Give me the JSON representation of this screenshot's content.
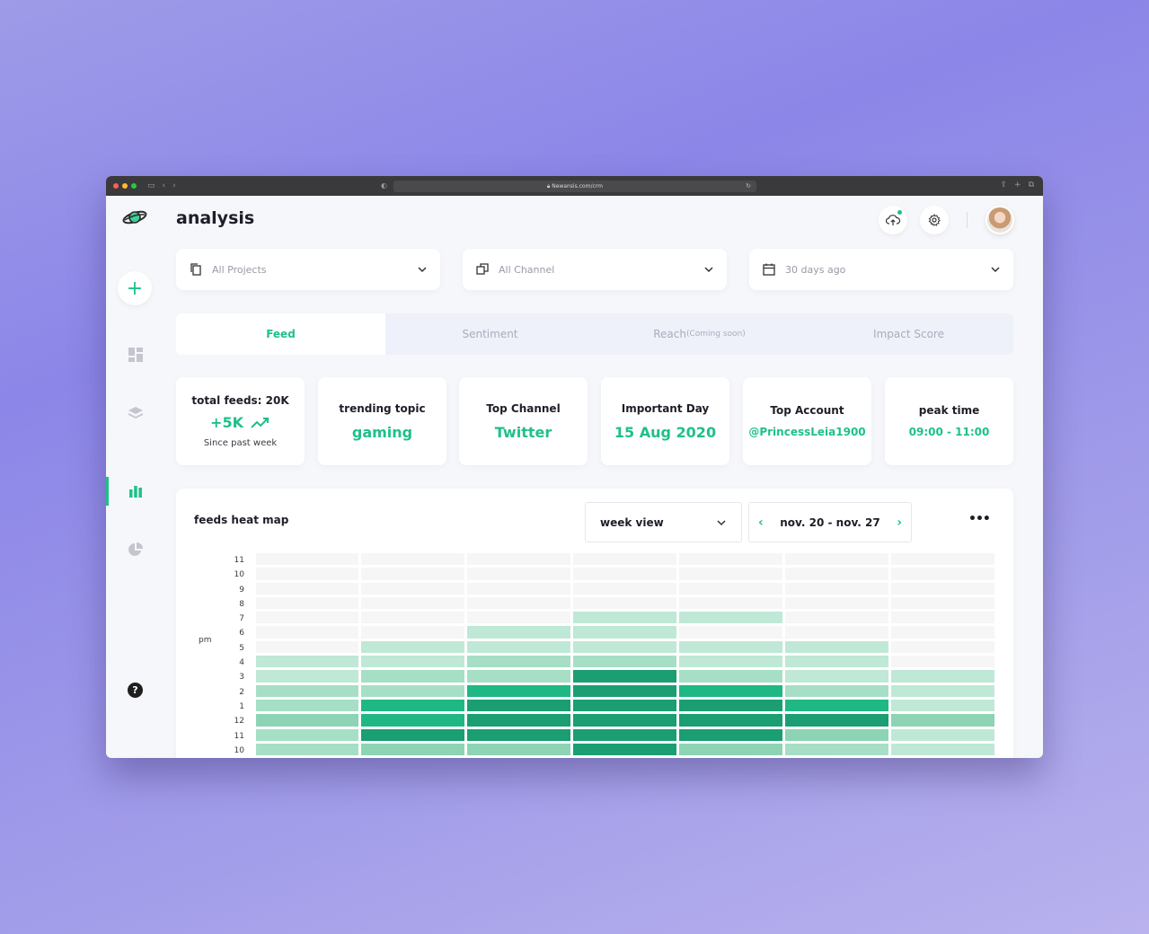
{
  "browser": {
    "url": "Newansis.com/crm"
  },
  "header": {
    "title": "analysis"
  },
  "filters": [
    {
      "label": "All Projects",
      "icon": "copy-icon"
    },
    {
      "label": "All Channel",
      "icon": "channels-icon"
    },
    {
      "label": "30 days ago",
      "icon": "calendar-icon"
    }
  ],
  "tabs": [
    {
      "label": "Feed",
      "suffix": "",
      "active": true
    },
    {
      "label": "Sentiment",
      "suffix": "",
      "active": false
    },
    {
      "label": "Reach",
      "suffix": "(Coming soon)",
      "active": false
    },
    {
      "label": "Impact Score",
      "suffix": "",
      "active": false
    }
  ],
  "stats": {
    "total": {
      "title": "total feeds: 20K",
      "value": "+5K",
      "sub": "Since past week"
    },
    "trending": {
      "title": "trending topic",
      "value": "gaming"
    },
    "channel": {
      "title": "Top Channel",
      "value": "Twitter"
    },
    "day": {
      "title": "Important Day",
      "value": "15 Aug 2020"
    },
    "account": {
      "title": "Top Account",
      "value": "@PrincessLeia1900"
    },
    "peak": {
      "title": "peak time",
      "value": "09:00 - 11:00"
    }
  },
  "heatmap": {
    "title": "feeds heat map",
    "view_select": "week view",
    "range": "nov. 20 - nov. 27",
    "period_label": "pm",
    "more_label": "•••",
    "hours": [
      "11",
      "10",
      "9",
      "8",
      "7",
      "6",
      "5",
      "4",
      "3",
      "2",
      "1",
      "12",
      "11",
      "10"
    ],
    "levels": [
      [
        0,
        0,
        0,
        0,
        0,
        0,
        0
      ],
      [
        0,
        0,
        0,
        0,
        0,
        0,
        0
      ],
      [
        0,
        0,
        0,
        0,
        0,
        0,
        0
      ],
      [
        0,
        0,
        0,
        0,
        0,
        0,
        0
      ],
      [
        0,
        0,
        0,
        1,
        1,
        0,
        0
      ],
      [
        0,
        0,
        1,
        1,
        0,
        0,
        0
      ],
      [
        0,
        1,
        1,
        1,
        1,
        1,
        0
      ],
      [
        1,
        1,
        2,
        2,
        1,
        1,
        0
      ],
      [
        1,
        2,
        2,
        5,
        2,
        1,
        1
      ],
      [
        2,
        2,
        4,
        5,
        4,
        2,
        1
      ],
      [
        2,
        4,
        5,
        5,
        5,
        4,
        1
      ],
      [
        3,
        4,
        5,
        5,
        5,
        5,
        3
      ],
      [
        2,
        5,
        5,
        5,
        5,
        3,
        1
      ],
      [
        2,
        3,
        3,
        5,
        3,
        2,
        1
      ]
    ],
    "palette": [
      "#f6f6f7",
      "#bfe8d6",
      "#a6dfc6",
      "#8cd4b4",
      "#1fb884",
      "#1a9e72"
    ]
  },
  "colors": {
    "accent": "#1fc08a"
  }
}
